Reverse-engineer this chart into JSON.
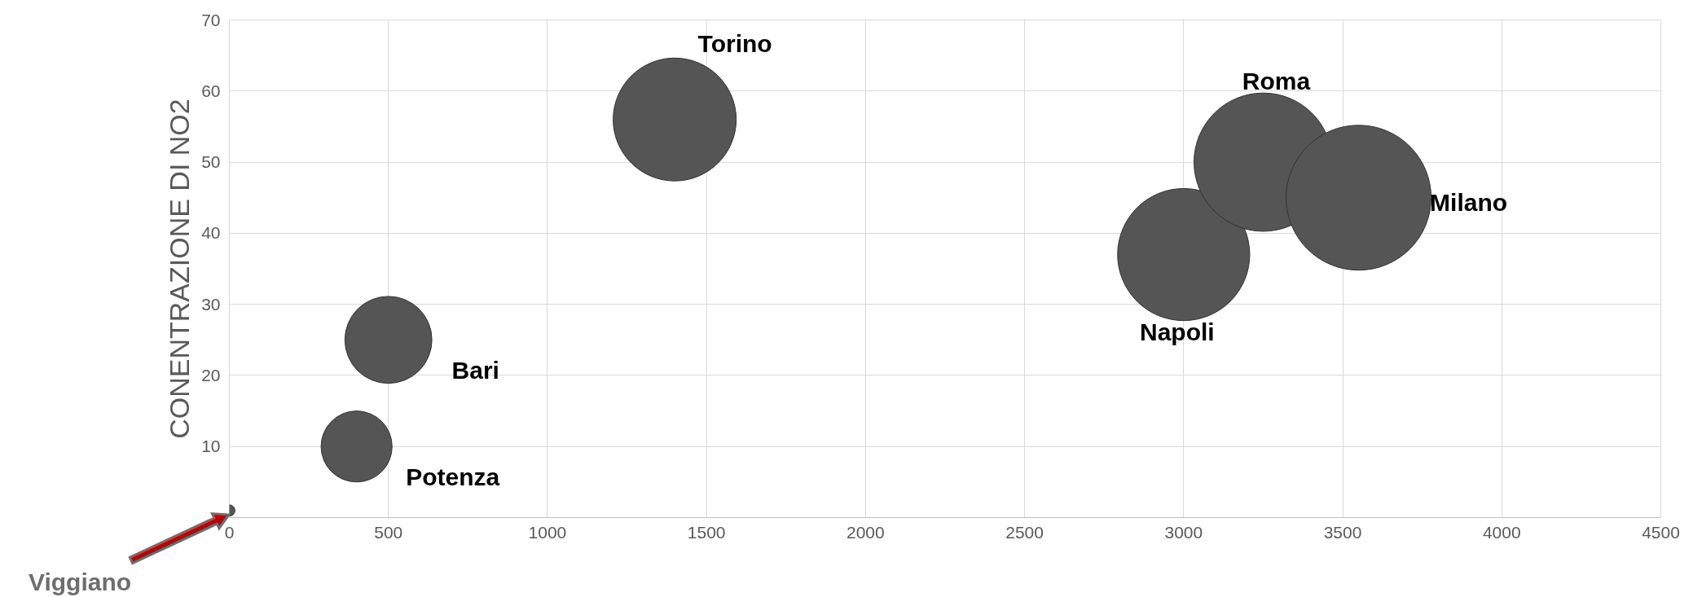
{
  "chart_data": {
    "type": "bubble",
    "ylabel": "CONENTRAZIONE DI NO2",
    "x": [
      0,
      400,
      500,
      1400,
      3000,
      3250,
      3550
    ],
    "series": [
      {
        "color": "#555555",
        "values": [
          1,
          10,
          25,
          56,
          37,
          50,
          45
        ],
        "sizes": [
          0.006,
          0.24,
          0.36,
          0.72,
          0.83,
          0.91,
          1
        ]
      }
    ],
    "xlim": [
      0,
      4500
    ],
    "xticks": [
      0,
      500,
      1000,
      1500,
      2000,
      2500,
      3000,
      3500,
      4000,
      4500
    ],
    "ylim": [
      0,
      70
    ],
    "yticks": [
      {
        "value": 0,
        "label": null
      },
      10,
      20,
      30,
      40,
      50,
      60,
      70
    ],
    "grid": true,
    "annotations": [
      "Viggiano",
      {
        "text": "Potenza",
        "x": 400,
        "y": 10
      },
      {
        "text": "Bari",
        "x": 500,
        "y": 25
      },
      {
        "text": "Torino",
        "x": 1400,
        "y": 56
      },
      {
        "text": "Napoli",
        "x": 3000,
        "y": 37
      },
      {
        "text": "Roma",
        "x": 3250,
        "y": 50
      },
      {
        "text": "Milano",
        "x": 3550,
        "y": 45
      }
    ]
  }
}
